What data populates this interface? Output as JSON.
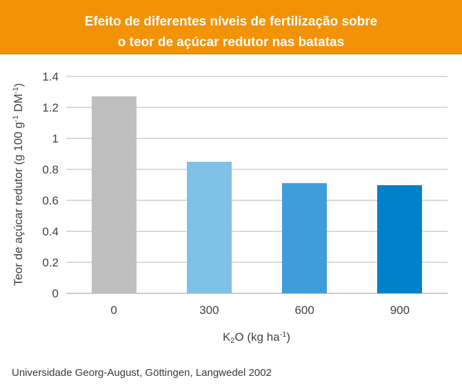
{
  "banner": {
    "title_line1": "Efeito de diferentes níveis de fertilização sobre",
    "title_line2": "o teor de açúcar redutor nas batatas",
    "bg_color": "#F29305",
    "text_color": "#FFFFFF"
  },
  "chart_data": {
    "type": "bar",
    "categories": [
      "0",
      "300",
      "600",
      "900"
    ],
    "values": [
      1.27,
      0.85,
      0.71,
      0.7
    ],
    "bar_colors": [
      "#BFBFBF",
      "#7FC0E5",
      "#3F9DDB",
      "#0081C8"
    ],
    "title": "",
    "xlabel": "K2O (kg ha-1)",
    "ylabel": "Teor de açúcar redutor (g 100 g-1 DM-1)",
    "ylim": [
      0,
      1.4
    ],
    "yticks": {
      "values": [
        1.4,
        1.2,
        1,
        0.8,
        0.6,
        0.4,
        0.2,
        0
      ],
      "labels": [
        "1.4",
        "1.2",
        "1",
        "0.8",
        "0.6",
        "0.4",
        "0.2",
        "0"
      ]
    },
    "grid": true,
    "gridline_color": "#D9D9D9",
    "legend": "none"
  },
  "xlabel_parts": [
    {
      "t": "K",
      "s": "n"
    },
    {
      "t": "2",
      "s": "sub"
    },
    {
      "t": "O (kg ha",
      "s": "n"
    },
    {
      "t": "-1",
      "s": "sup"
    },
    {
      "t": ")",
      "s": "n"
    }
  ],
  "ylabel_parts": [
    {
      "t": "Teor de açúcar redutor (g 100 g",
      "s": "n"
    },
    {
      "t": "-1",
      "s": "sup"
    },
    {
      "t": " DM",
      "s": "n"
    },
    {
      "t": "-1",
      "s": "sup"
    },
    {
      "t": ")",
      "s": "n"
    }
  ],
  "caption": "Universidade Georg-August, Göttingen, Langwedel 2002"
}
